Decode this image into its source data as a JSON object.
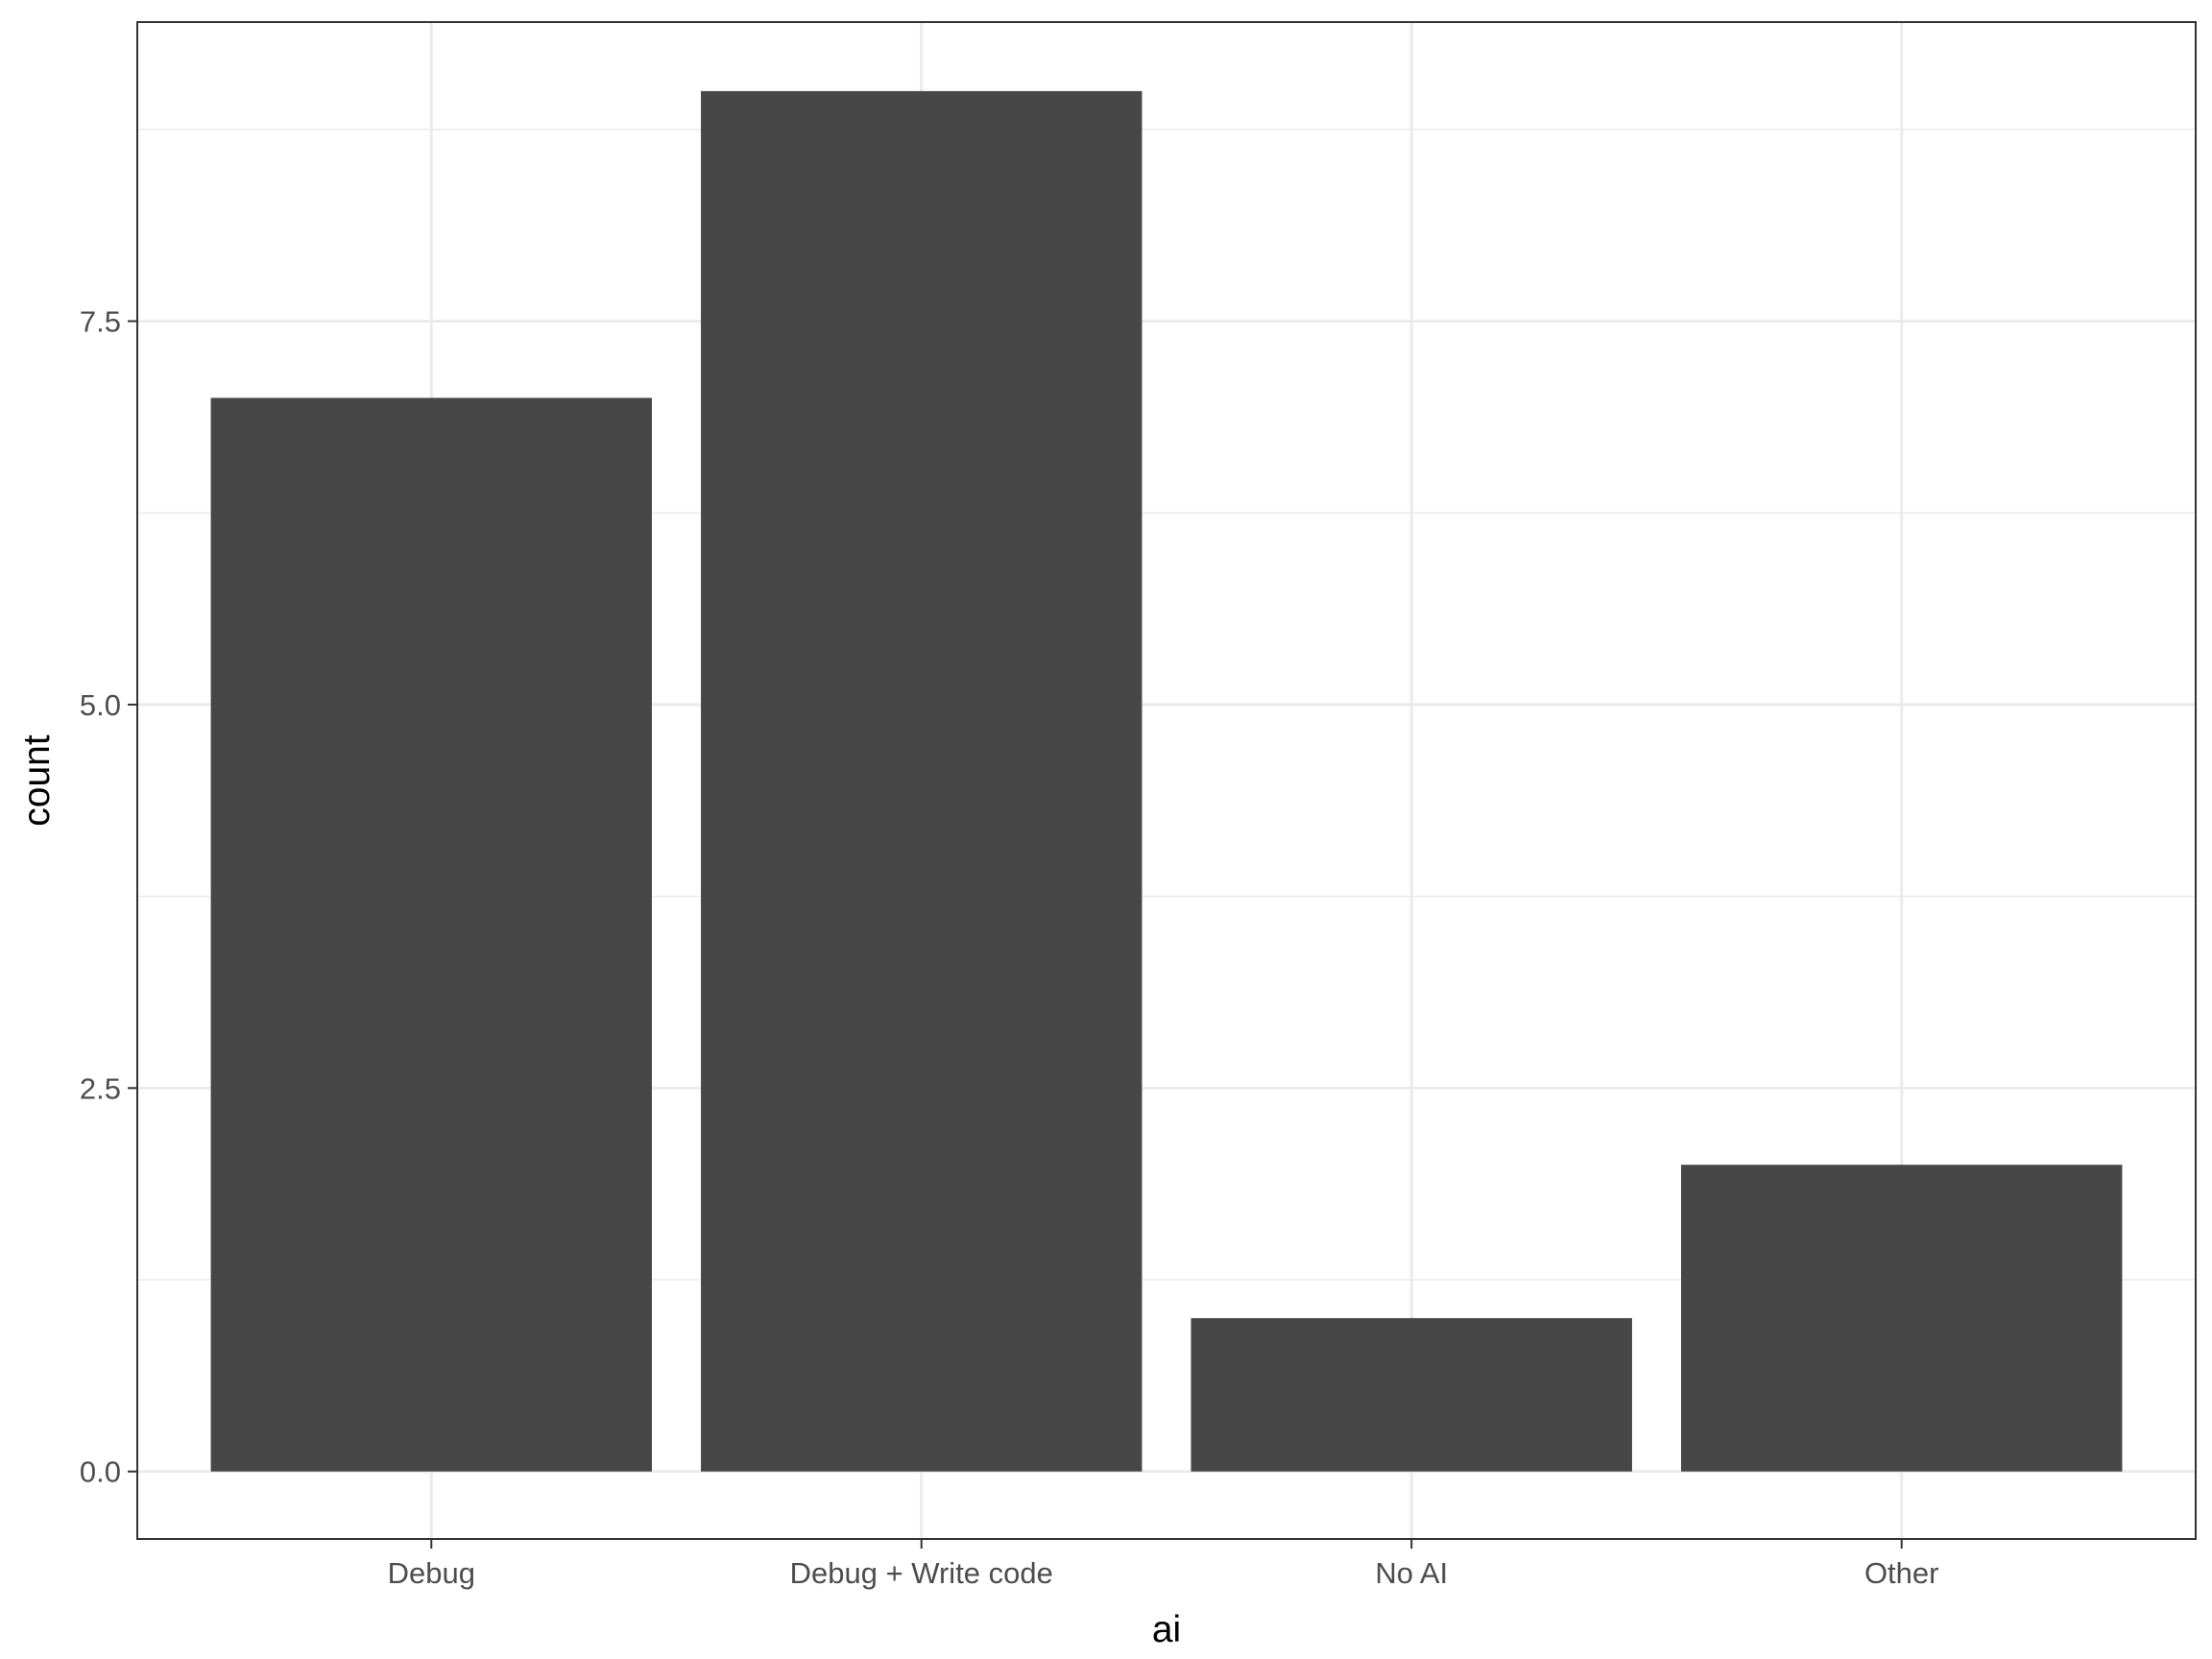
{
  "chart_data": {
    "type": "bar",
    "categories": [
      "Debug",
      "Debug + Write code",
      "No AI",
      "Other"
    ],
    "values": [
      7,
      9,
      1,
      2
    ],
    "title": "",
    "xlabel": "ai",
    "ylabel": "count",
    "ylim": [
      -0.44,
      9.45
    ],
    "yticks": [
      "0.0",
      "2.5",
      "5.0",
      "7.5"
    ],
    "ytick_values": [
      0,
      2.5,
      5,
      7.5
    ],
    "grid": true,
    "legend": "none",
    "colors": {
      "bar": "#474747",
      "grid": "#ebebeb",
      "panel_border": "#333333"
    }
  }
}
